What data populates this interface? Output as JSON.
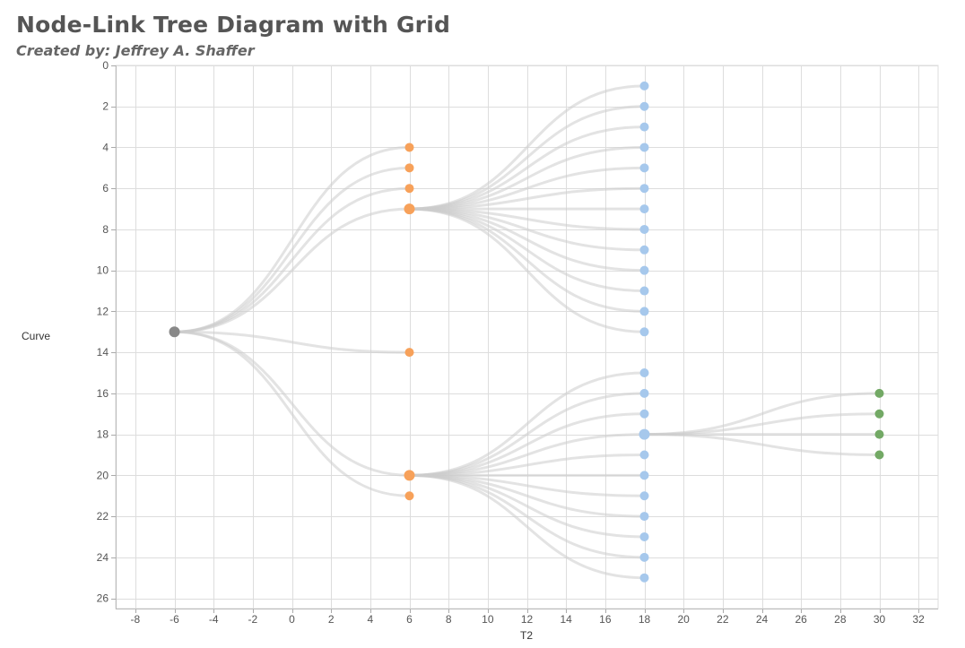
{
  "header": {
    "title": "Node-Link Tree Diagram with Grid",
    "subtitle": "Created by: Jeffrey A. Shaffer"
  },
  "colors": {
    "root": "#888888",
    "level1": "#f7a15a",
    "level2": "#a6c8ec",
    "level3": "#73a965",
    "link": "#cccccc",
    "grid": "#dddddd"
  },
  "chart_data": {
    "type": "scatter",
    "title": "Node-Link Tree Diagram with Grid",
    "xlabel": "T2",
    "ylabel": "Curve",
    "xlim": [
      -9,
      33
    ],
    "ylim": [
      0,
      26.5
    ],
    "y_reversed": true,
    "grid": true,
    "x_ticks": [
      -8,
      -6,
      -4,
      -2,
      0,
      2,
      4,
      6,
      8,
      10,
      12,
      14,
      16,
      18,
      20,
      22,
      24,
      26,
      28,
      30,
      32
    ],
    "y_ticks": [
      0,
      2,
      4,
      6,
      8,
      10,
      12,
      14,
      16,
      18,
      20,
      22,
      24,
      26
    ],
    "nodes": [
      {
        "id": "root",
        "x": -6,
        "y": 13,
        "level": "root"
      },
      {
        "id": "a1",
        "x": 6,
        "y": 4,
        "level": "level1"
      },
      {
        "id": "a2",
        "x": 6,
        "y": 5,
        "level": "level1"
      },
      {
        "id": "a3",
        "x": 6,
        "y": 6,
        "level": "level1"
      },
      {
        "id": "a4",
        "x": 6,
        "y": 7,
        "level": "level1"
      },
      {
        "id": "a5",
        "x": 6,
        "y": 14,
        "level": "level1"
      },
      {
        "id": "a6",
        "x": 6,
        "y": 20,
        "level": "level1"
      },
      {
        "id": "a7",
        "x": 6,
        "y": 21,
        "level": "level1"
      },
      {
        "id": "b1",
        "x": 18,
        "y": 1,
        "level": "level2"
      },
      {
        "id": "b2",
        "x": 18,
        "y": 2,
        "level": "level2"
      },
      {
        "id": "b3",
        "x": 18,
        "y": 3,
        "level": "level2"
      },
      {
        "id": "b4",
        "x": 18,
        "y": 4,
        "level": "level2"
      },
      {
        "id": "b5",
        "x": 18,
        "y": 5,
        "level": "level2"
      },
      {
        "id": "b6",
        "x": 18,
        "y": 6,
        "level": "level2"
      },
      {
        "id": "b7",
        "x": 18,
        "y": 7,
        "level": "level2"
      },
      {
        "id": "b8",
        "x": 18,
        "y": 8,
        "level": "level2"
      },
      {
        "id": "b9",
        "x": 18,
        "y": 9,
        "level": "level2"
      },
      {
        "id": "b10",
        "x": 18,
        "y": 10,
        "level": "level2"
      },
      {
        "id": "b11",
        "x": 18,
        "y": 11,
        "level": "level2"
      },
      {
        "id": "b12",
        "x": 18,
        "y": 12,
        "level": "level2"
      },
      {
        "id": "b13",
        "x": 18,
        "y": 13,
        "level": "level2"
      },
      {
        "id": "c1",
        "x": 18,
        "y": 15,
        "level": "level2"
      },
      {
        "id": "c2",
        "x": 18,
        "y": 16,
        "level": "level2"
      },
      {
        "id": "c3",
        "x": 18,
        "y": 17,
        "level": "level2"
      },
      {
        "id": "c4",
        "x": 18,
        "y": 18,
        "level": "level2"
      },
      {
        "id": "c5",
        "x": 18,
        "y": 19,
        "level": "level2"
      },
      {
        "id": "c6",
        "x": 18,
        "y": 20,
        "level": "level2"
      },
      {
        "id": "c7",
        "x": 18,
        "y": 21,
        "level": "level2"
      },
      {
        "id": "c8",
        "x": 18,
        "y": 22,
        "level": "level2"
      },
      {
        "id": "c9",
        "x": 18,
        "y": 23,
        "level": "level2"
      },
      {
        "id": "c10",
        "x": 18,
        "y": 24,
        "level": "level2"
      },
      {
        "id": "c11",
        "x": 18,
        "y": 25,
        "level": "level2"
      },
      {
        "id": "d1",
        "x": 30,
        "y": 16,
        "level": "level3"
      },
      {
        "id": "d2",
        "x": 30,
        "y": 17,
        "level": "level3"
      },
      {
        "id": "d3",
        "x": 30,
        "y": 18,
        "level": "level3"
      },
      {
        "id": "d4",
        "x": 30,
        "y": 19,
        "level": "level3"
      }
    ],
    "links": [
      {
        "from": "root",
        "to": "a1"
      },
      {
        "from": "root",
        "to": "a2"
      },
      {
        "from": "root",
        "to": "a3"
      },
      {
        "from": "root",
        "to": "a4"
      },
      {
        "from": "root",
        "to": "a5"
      },
      {
        "from": "root",
        "to": "a6"
      },
      {
        "from": "root",
        "to": "a7"
      },
      {
        "from": "a4",
        "to": "b1"
      },
      {
        "from": "a4",
        "to": "b2"
      },
      {
        "from": "a4",
        "to": "b3"
      },
      {
        "from": "a4",
        "to": "b4"
      },
      {
        "from": "a4",
        "to": "b5"
      },
      {
        "from": "a4",
        "to": "b6"
      },
      {
        "from": "a4",
        "to": "b7"
      },
      {
        "from": "a4",
        "to": "b8"
      },
      {
        "from": "a4",
        "to": "b9"
      },
      {
        "from": "a4",
        "to": "b10"
      },
      {
        "from": "a4",
        "to": "b11"
      },
      {
        "from": "a4",
        "to": "b12"
      },
      {
        "from": "a4",
        "to": "b13"
      },
      {
        "from": "a6",
        "to": "c1"
      },
      {
        "from": "a6",
        "to": "c2"
      },
      {
        "from": "a6",
        "to": "c3"
      },
      {
        "from": "a6",
        "to": "c4"
      },
      {
        "from": "a6",
        "to": "c5"
      },
      {
        "from": "a6",
        "to": "c6"
      },
      {
        "from": "a6",
        "to": "c7"
      },
      {
        "from": "a6",
        "to": "c8"
      },
      {
        "from": "a6",
        "to": "c9"
      },
      {
        "from": "a6",
        "to": "c10"
      },
      {
        "from": "a6",
        "to": "c11"
      },
      {
        "from": "c4",
        "to": "d1"
      },
      {
        "from": "c4",
        "to": "d2"
      },
      {
        "from": "c4",
        "to": "d3"
      },
      {
        "from": "c4",
        "to": "d4"
      }
    ]
  }
}
